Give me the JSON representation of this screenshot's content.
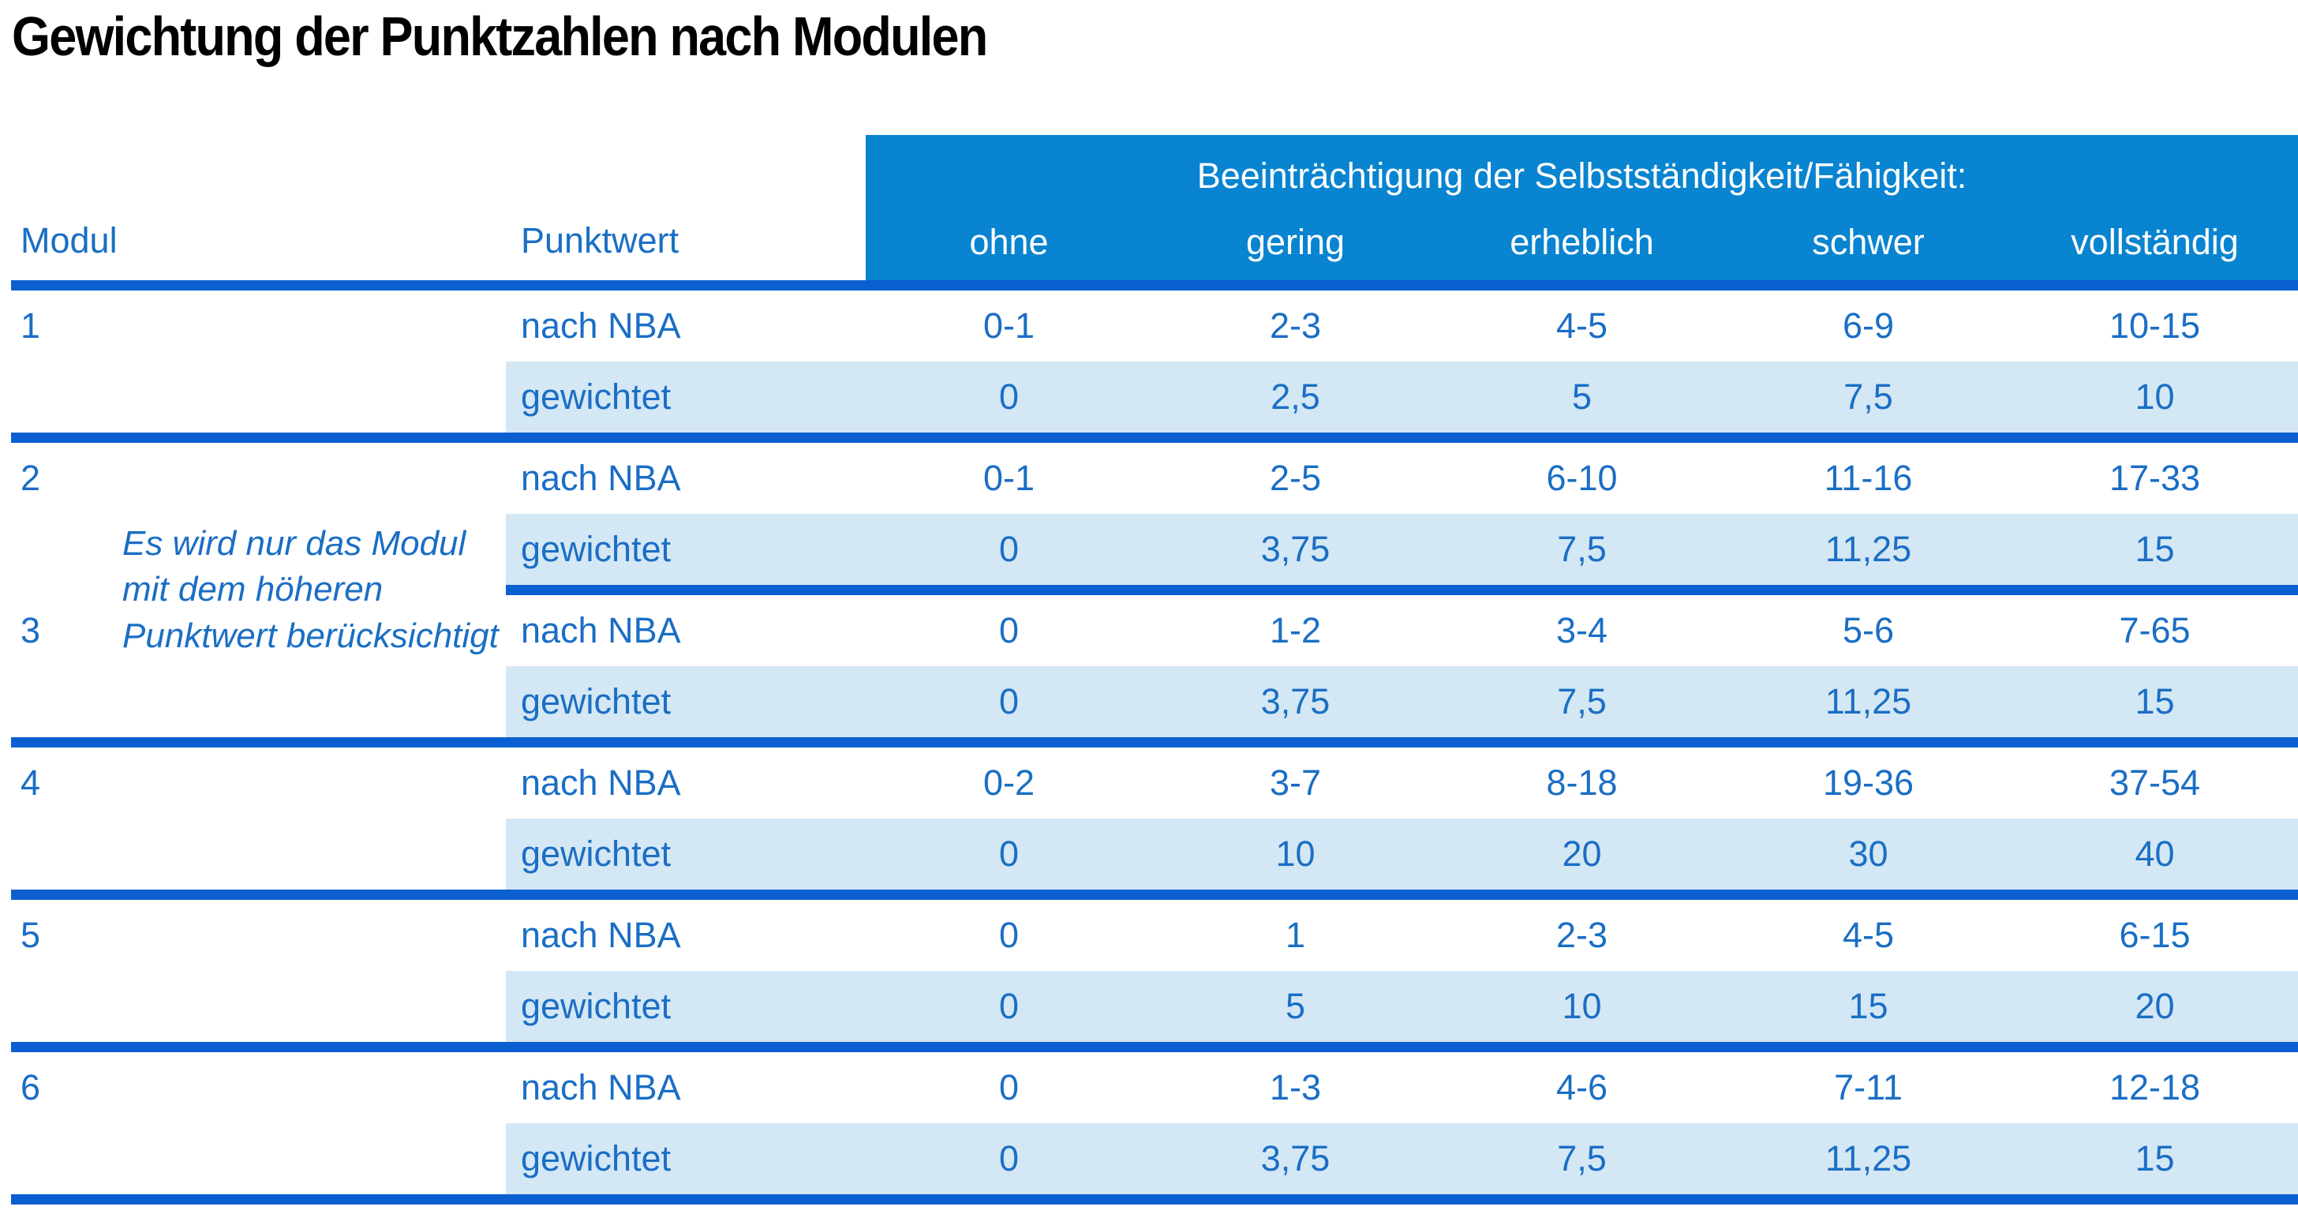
{
  "title": "Gewichtung der Punktzahlen nach Modulen",
  "table": {
    "col_headers": {
      "modul": "Modul",
      "punktwert": "Punktwert"
    },
    "impairment_header": "Beeinträchtigung der Selbstständigkeit/Fähigkeit:",
    "severity_levels": [
      "ohne",
      "gering",
      "erheblich",
      "schwer",
      "vollständig"
    ],
    "row_labels": {
      "nba": "nach NBA",
      "weighted": "gewichtet"
    },
    "note": {
      "line1": "Es wird nur das Modul",
      "line2": "mit dem höheren",
      "line3": "Punktwert berücksichtigt"
    },
    "modules": [
      {
        "module": "1",
        "nach_nba": [
          "0-1",
          "2-3",
          "4-5",
          "6-9",
          "10-15"
        ],
        "gewichtet": [
          "0",
          "2,5",
          "5",
          "7,5",
          "10"
        ]
      },
      {
        "module": "2",
        "nach_nba": [
          "0-1",
          "2-5",
          "6-10",
          "11-16",
          "17-33"
        ],
        "gewichtet": [
          "0",
          "3,75",
          "7,5",
          "11,25",
          "15"
        ]
      },
      {
        "module": "3",
        "nach_nba": [
          "0",
          "1-2",
          "3-4",
          "5-6",
          "7-65"
        ],
        "gewichtet": [
          "0",
          "3,75",
          "7,5",
          "11,25",
          "15"
        ]
      },
      {
        "module": "4",
        "nach_nba": [
          "0-2",
          "3-7",
          "8-18",
          "19-36",
          "37-54"
        ],
        "gewichtet": [
          "0",
          "10",
          "20",
          "30",
          "40"
        ]
      },
      {
        "module": "5",
        "nach_nba": [
          "0",
          "1",
          "2-3",
          "4-5",
          "6-15"
        ],
        "gewichtet": [
          "0",
          "5",
          "10",
          "15",
          "20"
        ]
      },
      {
        "module": "6",
        "nach_nba": [
          "0",
          "1-3",
          "4-6",
          "7-11",
          "12-18"
        ],
        "gewichtet": [
          "0",
          "3,75",
          "7,5",
          "11,25",
          "15"
        ]
      }
    ]
  },
  "colors": {
    "header_bg": "#0884d0",
    "row_alt_bg": "#d4e7f4",
    "divider": "#0c5fd0",
    "text_blue": "#1a6ec5",
    "title_color": "#000000"
  }
}
